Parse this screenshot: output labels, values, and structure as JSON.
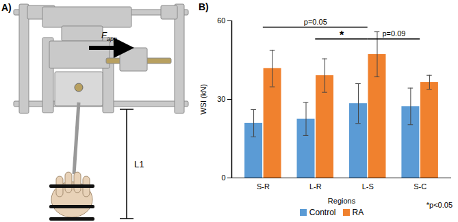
{
  "chart_data": {
    "type": "bar",
    "panel_label": "B)",
    "x_label": "Regions",
    "y_label": "WSI (kN)",
    "categories": [
      "S-R",
      "L-R",
      "L-S",
      "S-C"
    ],
    "series": [
      {
        "name": "Control",
        "color": "#5b9bd5",
        "values": [
          20.9,
          22.5,
          28.4,
          27.3
        ],
        "errors": [
          5.2,
          6.3,
          7.6,
          7.0
        ]
      },
      {
        "name": "RA",
        "color": "#f0812e",
        "values": [
          41.8,
          39.1,
          47.2,
          36.5
        ],
        "errors": [
          7.0,
          6.4,
          8.6,
          2.7
        ]
      }
    ],
    "ylim": [
      0,
      60
    ],
    "yticks": [
      0,
      30,
      60
    ],
    "legend": "bottom",
    "annotations": [
      {
        "from": "S-R",
        "to": "L-S",
        "label": "p=0.05"
      },
      {
        "from": "L-R",
        "to": "L-S",
        "label": "*"
      },
      {
        "from": "L-S",
        "to": "S-C",
        "label": "p=0.09"
      }
    ],
    "footnote": "*p<0.05"
  },
  "diagram": {
    "panel_label": "A)",
    "force_label": "F",
    "force_subscript": "app",
    "length_label": "L1"
  }
}
